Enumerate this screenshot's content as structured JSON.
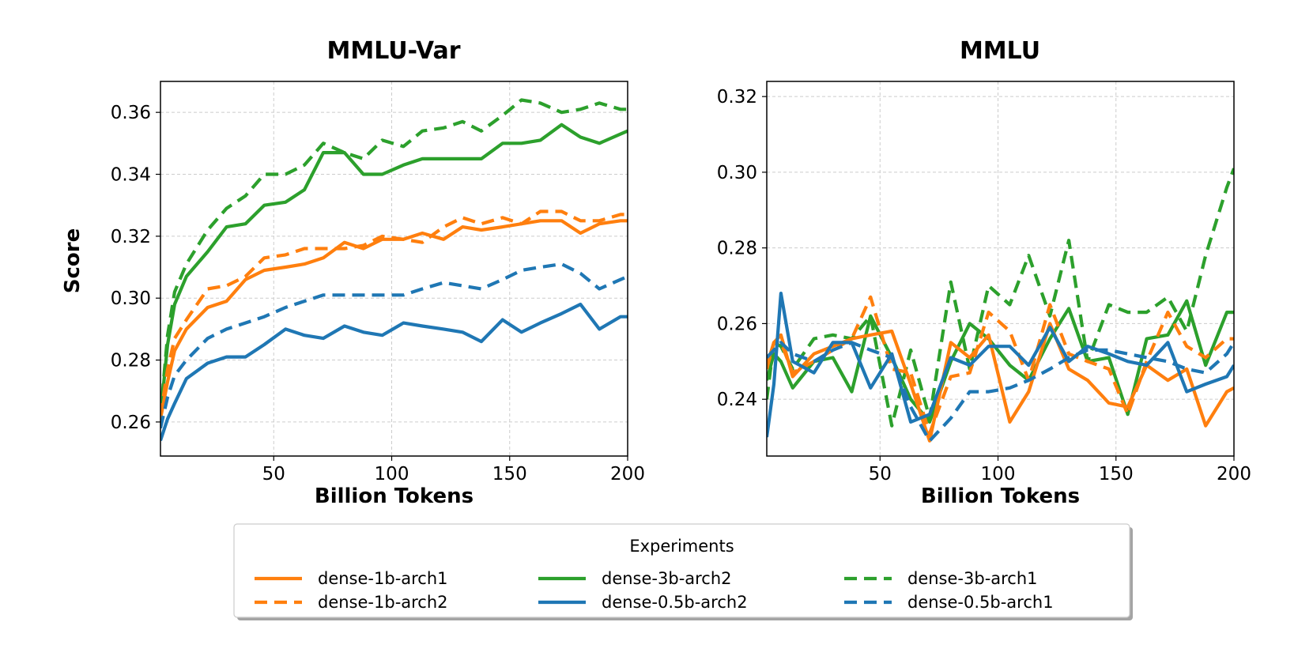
{
  "colors": {
    "orange": "#ff7f0e",
    "green": "#2ca02c",
    "blue": "#1f77b4"
  },
  "legend": {
    "title": "Experiments",
    "entries": [
      {
        "name": "dense-1b-arch1",
        "color": "#ff7f0e",
        "style": "solid"
      },
      {
        "name": "dense-1b-arch2",
        "color": "#ff7f0e",
        "style": "dashed"
      },
      {
        "name": "dense-3b-arch2",
        "color": "#2ca02c",
        "style": "solid"
      },
      {
        "name": "dense-0.5b-arch2",
        "color": "#1f77b4",
        "style": "solid"
      },
      {
        "name": "dense-3b-arch1",
        "color": "#2ca02c",
        "style": "dashed"
      },
      {
        "name": "dense-0.5b-arch1",
        "color": "#1f77b4",
        "style": "dashed"
      }
    ],
    "placement": "bottom-center"
  },
  "chart_data": [
    {
      "type": "line",
      "title": "MMLU-Var",
      "xlabel": "Billion Tokens",
      "ylabel": "Score",
      "xlim": [
        2,
        200
      ],
      "ylim": [
        0.249,
        0.37
      ],
      "xticks": [
        50,
        100,
        150,
        200
      ],
      "yticks": [
        0.26,
        0.28,
        0.3,
        0.32,
        0.34,
        0.36
      ],
      "ytick_labels": [
        "0.26",
        "0.28",
        "0.30",
        "0.32",
        "0.34",
        "0.36"
      ],
      "grid": true,
      "series": [
        {
          "name": "dense-3b-arch1",
          "color": "#2ca02c",
          "style": "dashed",
          "x": [
            2,
            5,
            8,
            13,
            22,
            30,
            38,
            46,
            55,
            63,
            71,
            80,
            88,
            96,
            105,
            113,
            122,
            130,
            138,
            147,
            155,
            163,
            172,
            180,
            188,
            197,
            200
          ],
          "y": [
            0.262,
            0.288,
            0.302,
            0.311,
            0.322,
            0.329,
            0.333,
            0.34,
            0.34,
            0.343,
            0.35,
            0.347,
            0.345,
            0.351,
            0.349,
            0.354,
            0.355,
            0.357,
            0.354,
            0.359,
            0.364,
            0.363,
            0.36,
            0.361,
            0.363,
            0.361,
            0.361
          ]
        },
        {
          "name": "dense-3b-arch2",
          "color": "#2ca02c",
          "style": "solid",
          "x": [
            2,
            5,
            8,
            13,
            22,
            30,
            38,
            46,
            55,
            63,
            71,
            80,
            88,
            96,
            105,
            113,
            122,
            130,
            138,
            147,
            155,
            163,
            172,
            180,
            188,
            197,
            200
          ],
          "y": [
            0.262,
            0.285,
            0.298,
            0.307,
            0.315,
            0.323,
            0.324,
            0.33,
            0.331,
            0.335,
            0.347,
            0.347,
            0.34,
            0.34,
            0.343,
            0.345,
            0.345,
            0.345,
            0.345,
            0.35,
            0.35,
            0.351,
            0.356,
            0.352,
            0.35,
            0.353,
            0.354
          ]
        },
        {
          "name": "dense-1b-arch2",
          "color": "#ff7f0e",
          "style": "dashed",
          "x": [
            2,
            5,
            8,
            13,
            22,
            30,
            38,
            46,
            55,
            63,
            71,
            80,
            88,
            96,
            105,
            113,
            122,
            130,
            138,
            147,
            155,
            163,
            172,
            180,
            188,
            197,
            200
          ],
          "y": [
            0.262,
            0.277,
            0.287,
            0.293,
            0.303,
            0.304,
            0.307,
            0.313,
            0.314,
            0.316,
            0.316,
            0.316,
            0.317,
            0.32,
            0.319,
            0.318,
            0.323,
            0.326,
            0.324,
            0.326,
            0.324,
            0.328,
            0.328,
            0.325,
            0.325,
            0.327,
            0.327
          ]
        },
        {
          "name": "dense-1b-arch1",
          "color": "#ff7f0e",
          "style": "solid",
          "x": [
            2,
            5,
            8,
            13,
            22,
            30,
            38,
            46,
            55,
            63,
            71,
            80,
            88,
            96,
            105,
            113,
            122,
            130,
            138,
            147,
            155,
            163,
            172,
            180,
            188,
            197,
            200
          ],
          "y": [
            0.261,
            0.273,
            0.283,
            0.29,
            0.297,
            0.299,
            0.306,
            0.309,
            0.31,
            0.311,
            0.313,
            0.318,
            0.316,
            0.319,
            0.319,
            0.321,
            0.319,
            0.323,
            0.322,
            0.323,
            0.324,
            0.325,
            0.325,
            0.321,
            0.324,
            0.325,
            0.325
          ]
        },
        {
          "name": "dense-0.5b-arch1",
          "color": "#1f77b4",
          "style": "dashed",
          "x": [
            2,
            5,
            8,
            13,
            22,
            30,
            38,
            46,
            55,
            63,
            71,
            80,
            88,
            96,
            105,
            113,
            122,
            130,
            138,
            147,
            155,
            163,
            172,
            180,
            188,
            197,
            200
          ],
          "y": [
            0.258,
            0.268,
            0.275,
            0.28,
            0.287,
            0.29,
            0.292,
            0.294,
            0.297,
            0.299,
            0.301,
            0.301,
            0.301,
            0.301,
            0.301,
            0.303,
            0.305,
            0.304,
            0.303,
            0.306,
            0.309,
            0.31,
            0.311,
            0.308,
            0.303,
            0.306,
            0.307
          ]
        },
        {
          "name": "dense-0.5b-arch2",
          "color": "#1f77b4",
          "style": "solid",
          "x": [
            2,
            5,
            8,
            13,
            22,
            30,
            38,
            46,
            55,
            63,
            71,
            80,
            88,
            96,
            105,
            113,
            122,
            130,
            138,
            147,
            155,
            163,
            172,
            180,
            188,
            197,
            200
          ],
          "y": [
            0.254,
            0.261,
            0.266,
            0.274,
            0.279,
            0.281,
            0.281,
            0.285,
            0.29,
            0.288,
            0.287,
            0.291,
            0.289,
            0.288,
            0.292,
            0.291,
            0.29,
            0.289,
            0.286,
            0.293,
            0.289,
            0.292,
            0.295,
            0.298,
            0.29,
            0.294,
            0.294
          ]
        }
      ]
    },
    {
      "type": "line",
      "title": "MMLU",
      "xlabel": "Billion Tokens",
      "ylabel": "",
      "xlim": [
        2,
        200
      ],
      "ylim": [
        0.225,
        0.324
      ],
      "xticks": [
        50,
        100,
        150,
        200
      ],
      "yticks": [
        0.24,
        0.26,
        0.28,
        0.3,
        0.32
      ],
      "ytick_labels": [
        "0.24",
        "0.26",
        "0.28",
        "0.30",
        "0.32"
      ],
      "grid": true,
      "series": [
        {
          "name": "dense-3b-arch1",
          "color": "#2ca02c",
          "style": "dashed",
          "x": [
            2,
            5,
            8,
            13,
            22,
            30,
            38,
            46,
            55,
            63,
            71,
            80,
            88,
            96,
            105,
            113,
            122,
            130,
            138,
            147,
            155,
            163,
            172,
            180,
            188,
            197,
            200
          ],
          "y": [
            0.24,
            0.255,
            0.254,
            0.248,
            0.256,
            0.257,
            0.256,
            0.262,
            0.233,
            0.253,
            0.235,
            0.271,
            0.248,
            0.27,
            0.265,
            0.278,
            0.262,
            0.282,
            0.25,
            0.265,
            0.263,
            0.263,
            0.267,
            0.258,
            0.278,
            0.296,
            0.301
          ]
        },
        {
          "name": "dense-3b-arch2",
          "color": "#2ca02c",
          "style": "solid",
          "x": [
            2,
            5,
            8,
            13,
            22,
            30,
            38,
            46,
            55,
            63,
            71,
            80,
            88,
            96,
            105,
            113,
            122,
            130,
            138,
            147,
            155,
            163,
            172,
            180,
            188,
            197,
            200
          ],
          "y": [
            0.245,
            0.252,
            0.25,
            0.243,
            0.25,
            0.251,
            0.242,
            0.262,
            0.251,
            0.24,
            0.234,
            0.25,
            0.26,
            0.256,
            0.249,
            0.245,
            0.256,
            0.264,
            0.25,
            0.251,
            0.236,
            0.256,
            0.257,
            0.266,
            0.249,
            0.263,
            0.263
          ]
        },
        {
          "name": "dense-1b-arch2",
          "color": "#ff7f0e",
          "style": "dashed",
          "x": [
            2,
            5,
            8,
            13,
            22,
            30,
            38,
            46,
            55,
            63,
            71,
            80,
            88,
            96,
            105,
            113,
            122,
            130,
            138,
            147,
            155,
            163,
            172,
            180,
            188,
            197,
            200
          ],
          "y": [
            0.248,
            0.255,
            0.255,
            0.247,
            0.25,
            0.253,
            0.256,
            0.267,
            0.248,
            0.247,
            0.231,
            0.246,
            0.247,
            0.263,
            0.258,
            0.245,
            0.265,
            0.252,
            0.25,
            0.248,
            0.236,
            0.25,
            0.263,
            0.254,
            0.251,
            0.256,
            0.256
          ]
        },
        {
          "name": "dense-1b-arch1",
          "color": "#ff7f0e",
          "style": "solid",
          "x": [
            2,
            5,
            8,
            13,
            22,
            30,
            38,
            46,
            55,
            63,
            71,
            80,
            88,
            96,
            105,
            113,
            122,
            130,
            138,
            147,
            155,
            163,
            172,
            180,
            188,
            197,
            200
          ],
          "y": [
            0.249,
            0.255,
            0.257,
            0.246,
            0.252,
            0.254,
            0.256,
            0.257,
            0.258,
            0.244,
            0.229,
            0.255,
            0.251,
            0.257,
            0.234,
            0.242,
            0.26,
            0.248,
            0.245,
            0.239,
            0.238,
            0.249,
            0.245,
            0.248,
            0.233,
            0.242,
            0.243
          ]
        },
        {
          "name": "dense-0.5b-arch1",
          "color": "#1f77b4",
          "style": "dashed",
          "x": [
            2,
            5,
            8,
            13,
            22,
            30,
            38,
            46,
            55,
            63,
            71,
            80,
            88,
            96,
            105,
            113,
            122,
            130,
            138,
            147,
            155,
            163,
            172,
            180,
            188,
            197,
            200
          ],
          "y": [
            0.251,
            0.253,
            0.255,
            0.252,
            0.25,
            0.253,
            0.255,
            0.253,
            0.251,
            0.238,
            0.229,
            0.235,
            0.242,
            0.242,
            0.243,
            0.245,
            0.248,
            0.251,
            0.253,
            0.253,
            0.252,
            0.251,
            0.25,
            0.248,
            0.247,
            0.252,
            0.255
          ]
        },
        {
          "name": "dense-0.5b-arch2",
          "color": "#1f77b4",
          "style": "solid",
          "x": [
            2,
            5,
            8,
            13,
            22,
            30,
            38,
            46,
            55,
            63,
            71,
            80,
            88,
            96,
            105,
            113,
            122,
            130,
            138,
            147,
            155,
            163,
            172,
            180,
            188,
            197,
            200
          ],
          "y": [
            0.23,
            0.244,
            0.268,
            0.25,
            0.247,
            0.255,
            0.255,
            0.243,
            0.252,
            0.234,
            0.236,
            0.251,
            0.249,
            0.254,
            0.254,
            0.249,
            0.259,
            0.25,
            0.254,
            0.252,
            0.25,
            0.249,
            0.255,
            0.242,
            0.244,
            0.246,
            0.249
          ]
        }
      ]
    }
  ]
}
